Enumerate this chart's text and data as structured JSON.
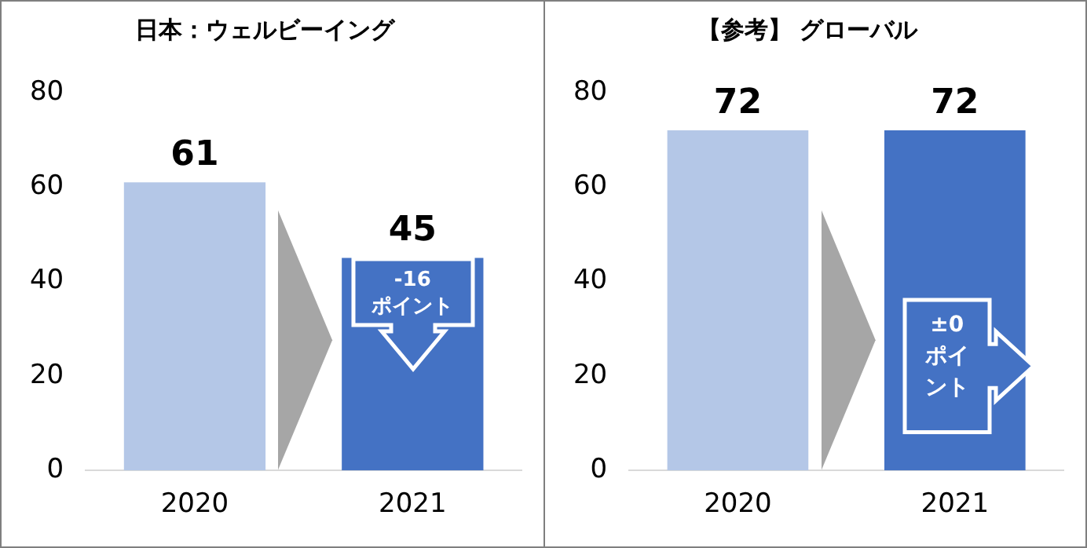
{
  "chart_data": [
    {
      "type": "bar",
      "title": "日本：ウェルビーイング",
      "categories": [
        "2020",
        "2021"
      ],
      "values": [
        61,
        45
      ],
      "colors": [
        "#b4c7e7",
        "#4472c4"
      ],
      "ylim": [
        0,
        80
      ],
      "yticks": [
        0,
        20,
        40,
        60,
        80
      ],
      "grid": false,
      "legend": false,
      "data_labels": true,
      "annotations": [
        "-16 ポイント"
      ]
    },
    {
      "type": "bar",
      "title": "【参考】 グローバル",
      "categories": [
        "2020",
        "2021"
      ],
      "values": [
        72,
        72
      ],
      "colors": [
        "#b4c7e7",
        "#4472c4"
      ],
      "ylim": [
        0,
        80
      ],
      "yticks": [
        0,
        20,
        40,
        60,
        80
      ],
      "grid": false,
      "legend": false,
      "data_labels": true,
      "annotations": [
        "±0 ポイント"
      ]
    }
  ]
}
